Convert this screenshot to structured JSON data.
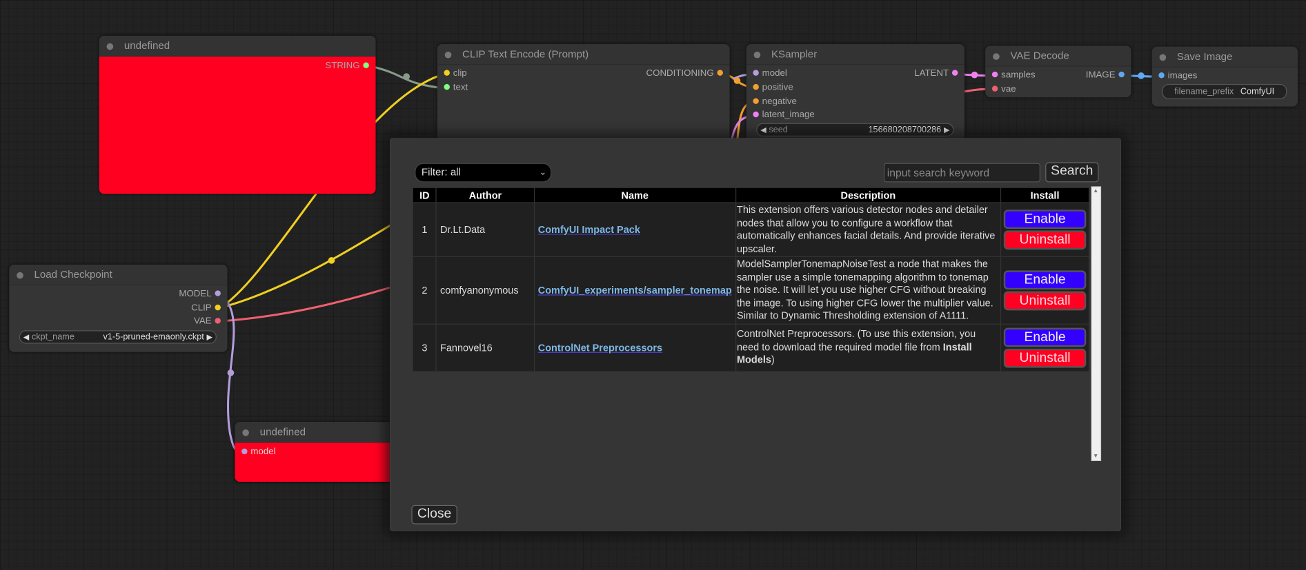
{
  "colors": {
    "node_red": "#ff0020",
    "enable": "#3300ff",
    "uninstall": "#ff0022",
    "link": "#7db7e6"
  },
  "nodes": {
    "undef1": {
      "title": "undefined",
      "outputs": [
        "STRING"
      ]
    },
    "clip": {
      "title": "CLIP Text Encode (Prompt)",
      "inputs": [
        "clip",
        "text"
      ],
      "outputs": [
        "CONDITIONING"
      ]
    },
    "ksampler": {
      "title": "KSampler",
      "inputs": [
        "model",
        "positive",
        "negative",
        "latent_image"
      ],
      "outputs": [
        "LATENT"
      ],
      "seed_label": "seed",
      "seed_value": "156680208700286"
    },
    "vae": {
      "title": "VAE Decode",
      "inputs": [
        "samples",
        "vae"
      ],
      "outputs": [
        "IMAGE"
      ]
    },
    "save": {
      "title": "Save Image",
      "inputs": [
        "images"
      ],
      "prefix_label": "filename_prefix",
      "prefix_value": "ComfyUI"
    },
    "load": {
      "title": "Load Checkpoint",
      "outputs": [
        "MODEL",
        "CLIP",
        "VAE"
      ],
      "ckpt_label": "ckpt_name",
      "ckpt_value": "v1-5-pruned-emaonly.ckpt"
    },
    "undef2": {
      "title": "undefined",
      "inputs": [
        "model"
      ]
    }
  },
  "dialog": {
    "filter": "Filter: all",
    "search_placeholder": "input search keyword",
    "search_button": "Search",
    "close_button": "Close",
    "columns": [
      "ID",
      "Author",
      "Name",
      "Description",
      "Install"
    ],
    "rows": [
      {
        "id": "1",
        "author": "Dr.Lt.Data",
        "name": "ComfyUI Impact Pack",
        "description": "This extension offers various detector nodes and detailer nodes that allow you to configure a workflow that automatically enhances facial details. And provide iterative upscaler.",
        "desc_bold": "",
        "desc_tail": "",
        "enable": "Enable",
        "uninstall": "Uninstall"
      },
      {
        "id": "2",
        "author": "comfyanonymous",
        "name": "ComfyUI_experiments/sampler_tonemap",
        "description": "ModelSamplerTonemapNoiseTest a node that makes the sampler use a simple tonemapping algorithm to tonemap the noise. It will let you use higher CFG without breaking the image. To using higher CFG lower the multiplier value. Similar to Dynamic Thresholding extension of A1111.",
        "desc_bold": "",
        "desc_tail": "",
        "enable": "Enable",
        "uninstall": "Uninstall"
      },
      {
        "id": "3",
        "author": "Fannovel16",
        "name": "ControlNet Preprocessors",
        "description": "ControlNet Preprocessors. (To use this extension, you need to download the required model file from ",
        "desc_bold": "Install Models",
        "desc_tail": ")",
        "enable": "Enable",
        "uninstall": "Uninstall"
      }
    ]
  }
}
